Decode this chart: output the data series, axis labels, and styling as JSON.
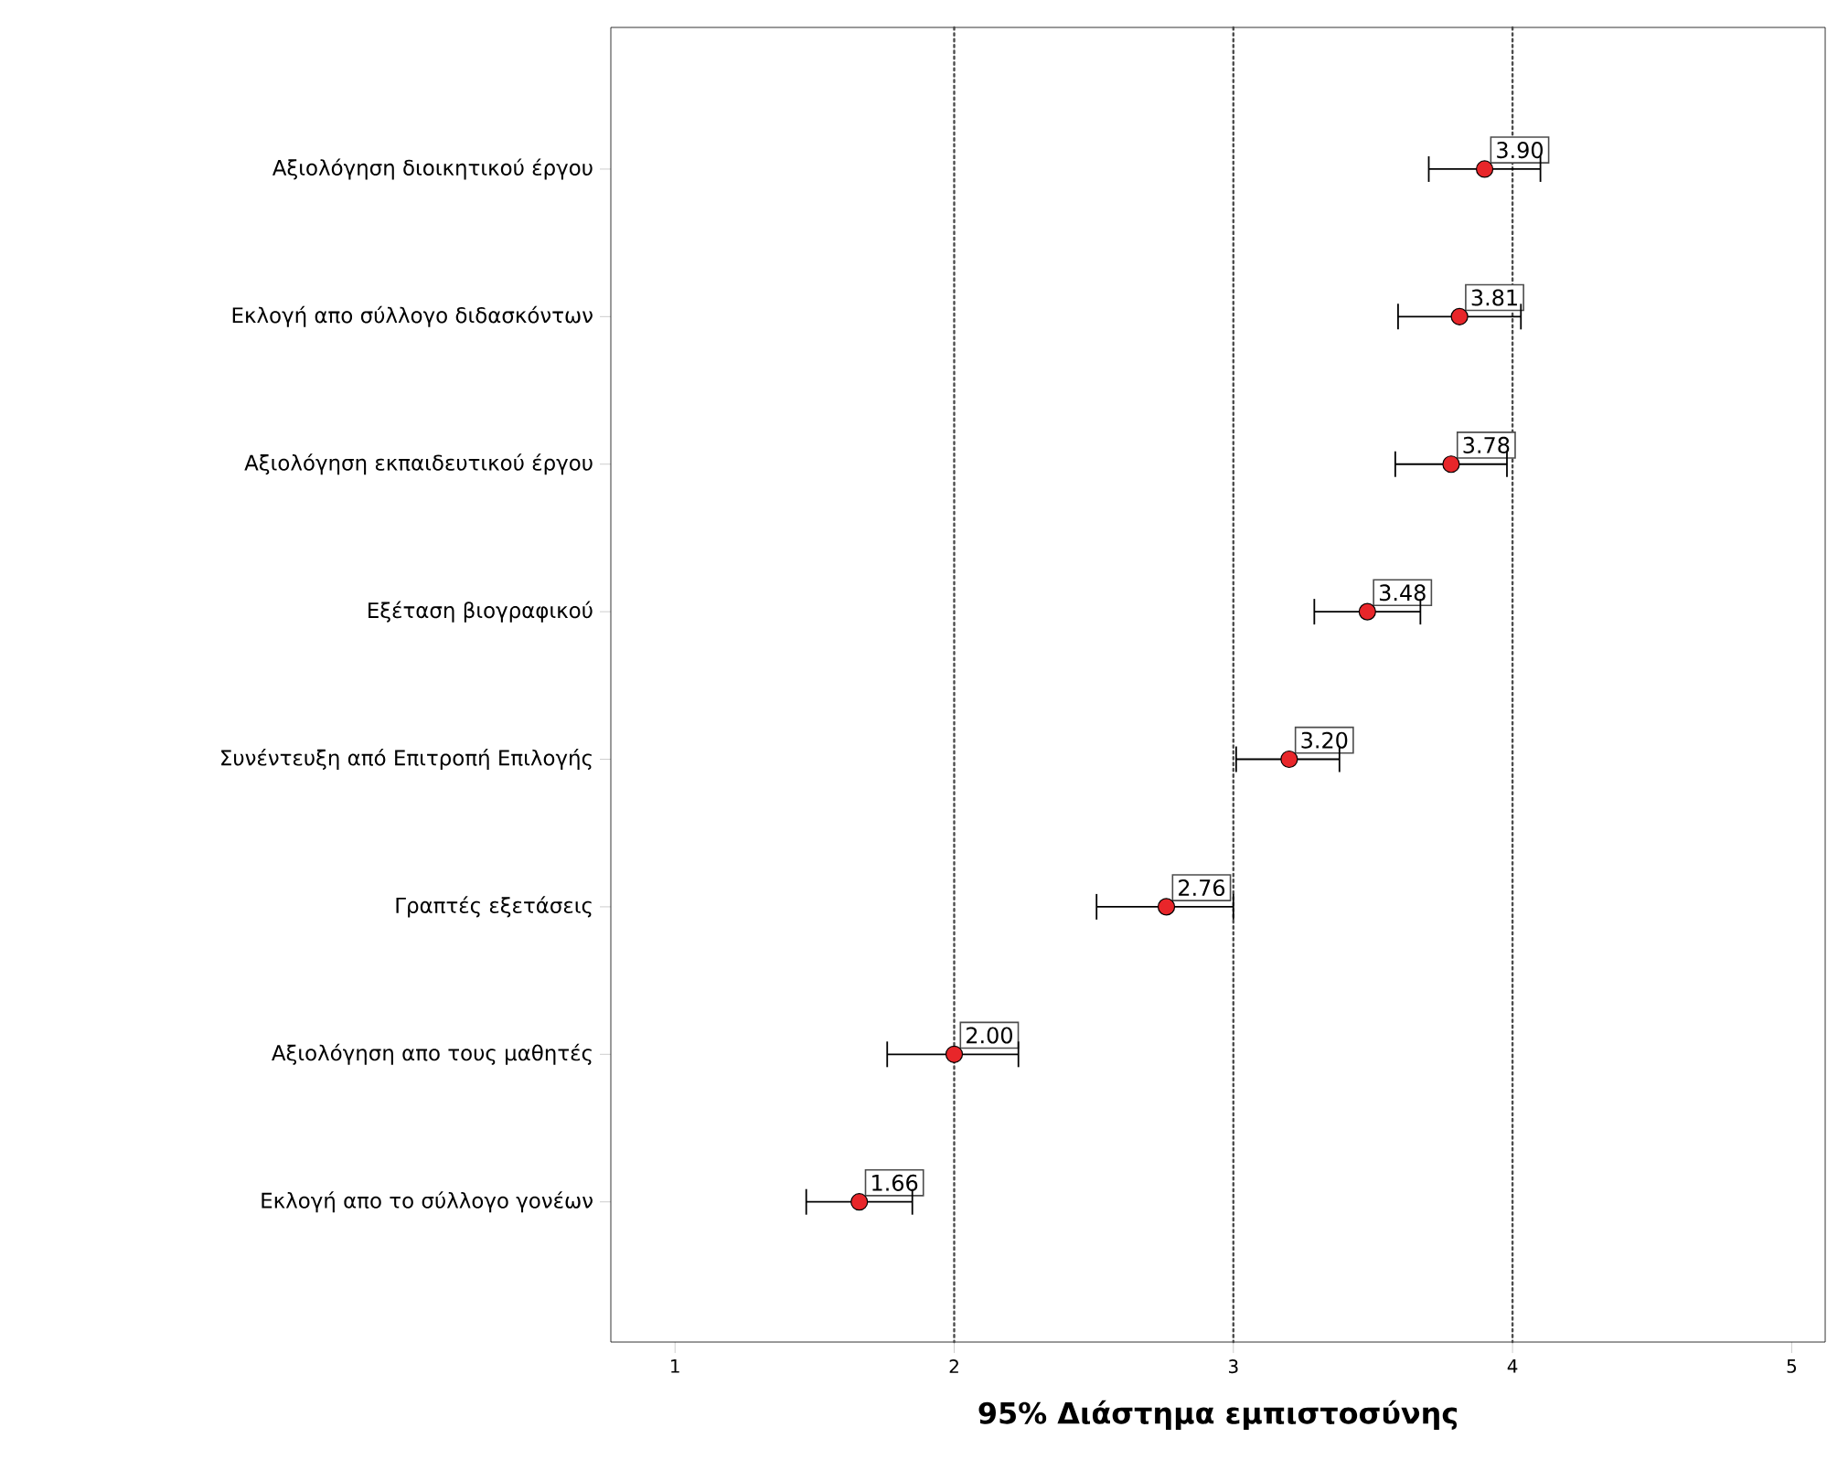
{
  "chart_data": {
    "type": "scatter",
    "categories": [
      "Αξιολόγηση διοικητικού έργου",
      "Εκλογή απο σύλλογο διδασκόντων",
      "Αξιολόγηση εκπαιδευτικού έργου",
      "Εξέταση βιογραφικού",
      "Συνέντευξη από Επιτροπή Επιλογής",
      "Γραπτές εξετάσεις",
      "Αξιολόγηση απο τους μαθητές",
      "Εκλογή απο το σύλλογο γονέων"
    ],
    "orientation": "horizontal",
    "values": [
      3.9,
      3.81,
      3.78,
      3.48,
      3.2,
      2.76,
      2.0,
      1.66
    ],
    "errors": [
      [
        3.7,
        4.1
      ],
      [
        3.59,
        4.03
      ],
      [
        3.58,
        3.98
      ],
      [
        3.29,
        3.67
      ],
      [
        3.01,
        3.38
      ],
      [
        2.51,
        3.0
      ],
      [
        1.76,
        2.23
      ],
      [
        1.47,
        1.85
      ]
    ],
    "color": "#e8262a",
    "marker": "circle",
    "value_labels": [
      "3.90",
      "3.81",
      "3.78",
      "3.48",
      "3.20",
      "2.76",
      "2.00",
      "1.66"
    ],
    "xlabel": "95% Διάστημα εμπιστοσύνης",
    "xlim": [
      0.77,
      5.12
    ],
    "xticks": [
      1,
      2,
      3,
      4,
      5
    ],
    "ref_lines": [
      {
        "axis": "x",
        "value": 2,
        "line_style": "dotted"
      },
      {
        "axis": "x",
        "value": 3,
        "line_style": "dotted"
      },
      {
        "axis": "x",
        "value": 4,
        "line_style": "dotted"
      }
    ]
  }
}
